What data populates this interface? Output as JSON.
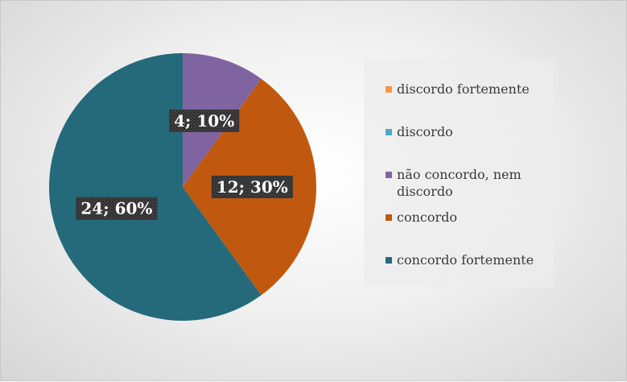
{
  "chart_data": {
    "type": "pie",
    "title": "",
    "legend_position": "right",
    "start_angle_deg": 0,
    "direction": "clockwise",
    "categories": [
      "discordo fortemente",
      "discordo",
      "não concordo, nem discordo",
      "concordo",
      "concordo fortemente"
    ],
    "values": [
      0,
      0,
      4,
      12,
      24
    ],
    "percentages": [
      0,
      0,
      10,
      30,
      60
    ],
    "colors": [
      "#f79646",
      "#4bacc6",
      "#8064a2",
      "#c0590f",
      "#256a7b"
    ],
    "data_labels": [
      "",
      "",
      "4; 10%",
      "12; 30%",
      "24; 60%"
    ]
  }
}
